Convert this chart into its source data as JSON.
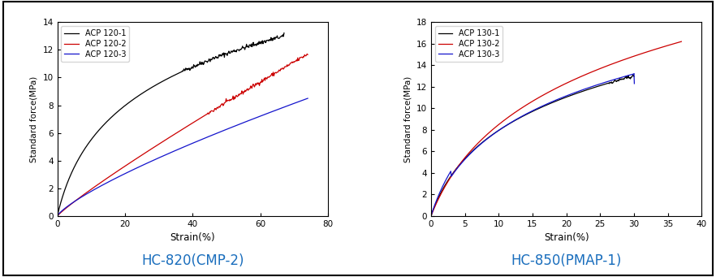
{
  "plot1": {
    "title": "HC-820(CMP-2)",
    "xlabel": "Strain(%)",
    "ylabel": "Standard force(MPa)",
    "xlim": [
      0,
      80
    ],
    "ylim": [
      0,
      14
    ],
    "xticks": [
      0,
      20,
      40,
      60,
      80
    ],
    "yticks": [
      0,
      2,
      4,
      6,
      8,
      10,
      12,
      14
    ],
    "legend": [
      "ACP 120-1",
      "ACP 120-2",
      "ACP 120-3"
    ],
    "colors": [
      "#000000",
      "#cc0000",
      "#1414cc"
    ]
  },
  "plot2": {
    "title": "HC-850(PMAP-1)",
    "xlabel": "Strain(%)",
    "ylabel": "Standard force(MPa)",
    "xlim": [
      0,
      40
    ],
    "ylim": [
      0,
      18
    ],
    "xticks": [
      0,
      5,
      10,
      15,
      20,
      25,
      30,
      35,
      40
    ],
    "yticks": [
      0,
      2,
      4,
      6,
      8,
      10,
      12,
      14,
      16,
      18
    ],
    "legend": [
      "ACP 130-1",
      "ACP 130-2",
      "ACP 130-3"
    ],
    "colors": [
      "#000000",
      "#cc0000",
      "#1414cc"
    ]
  },
  "title_color": "#1a6ebd",
  "title_fontsize": 12,
  "background_color": "#ffffff"
}
